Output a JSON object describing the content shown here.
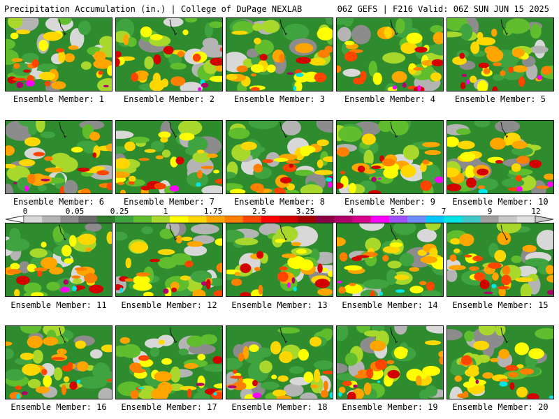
{
  "header": {
    "left_title": "Precipitation Accumulation (in.) | College of DuPage NEXLAB",
    "right_title": "06Z GEFS | F216 Valid: 06Z SUN JUN 15 2025"
  },
  "members": [
    {
      "label": "Ensemble Member: 1"
    },
    {
      "label": "Ensemble Member: 2"
    },
    {
      "label": "Ensemble Member: 3"
    },
    {
      "label": "Ensemble Member: 4"
    },
    {
      "label": "Ensemble Member: 5"
    },
    {
      "label": "Ensemble Member: 6"
    },
    {
      "label": "Ensemble Member: 7"
    },
    {
      "label": "Ensemble Member: 8"
    },
    {
      "label": "Ensemble Member: 9"
    },
    {
      "label": "Ensemble Member: 10"
    },
    {
      "label": "Ensemble Member: 11"
    },
    {
      "label": "Ensemble Member: 12"
    },
    {
      "label": "Ensemble Member: 13"
    },
    {
      "label": "Ensemble Member: 14"
    },
    {
      "label": "Ensemble Member: 15"
    },
    {
      "label": "Ensemble Member: 16"
    },
    {
      "label": "Ensemble Member: 17"
    },
    {
      "label": "Ensemble Member: 18"
    },
    {
      "label": "Ensemble Member: 19"
    },
    {
      "label": "Ensemble Member: 20"
    }
  ],
  "colorbar": {
    "tick_labels": [
      "0",
      "0.05",
      "0.25",
      "1",
      "1.75",
      "2.5",
      "3.25",
      "4",
      "5.5",
      "7",
      "9",
      "12"
    ],
    "colors": [
      "#d8d8d8",
      "#b4b4b4",
      "#8c8c8c",
      "#6a6a6a",
      "#2d7d2d",
      "#3fa33f",
      "#60bd2e",
      "#a8d82c",
      "#ffff00",
      "#ffd700",
      "#ffa500",
      "#ff7f00",
      "#ff4500",
      "#ff0000",
      "#d40000",
      "#a30000",
      "#8b0045",
      "#b0006a",
      "#d6008a",
      "#ff00ff",
      "#a050ff",
      "#6e8cff",
      "#00c8ff",
      "#00e6e6",
      "#40c8c8",
      "#a0a0a0",
      "#c8c8c8",
      "#e0e0e0"
    ]
  }
}
